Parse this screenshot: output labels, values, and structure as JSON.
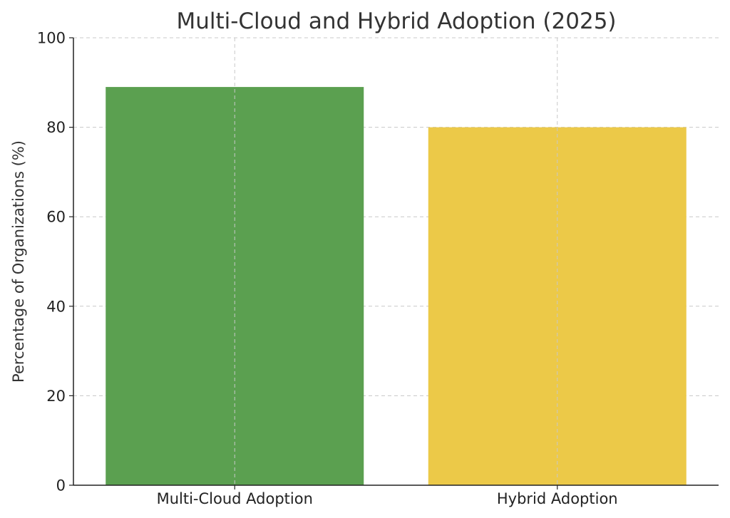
{
  "chart_data": {
    "type": "bar",
    "title": "Multi-Cloud and Hybrid Adoption (2025)",
    "xlabel": "",
    "ylabel": "Percentage of Organizations (%)",
    "categories": [
      "Multi-Cloud Adoption",
      "Hybrid Adoption"
    ],
    "values": [
      89,
      80
    ],
    "colors": [
      "#5ba050",
      "#ecc948"
    ],
    "ylim": [
      0,
      100
    ],
    "yticks": [
      0,
      20,
      40,
      60,
      80,
      100
    ],
    "grid": true,
    "legend": "none"
  }
}
